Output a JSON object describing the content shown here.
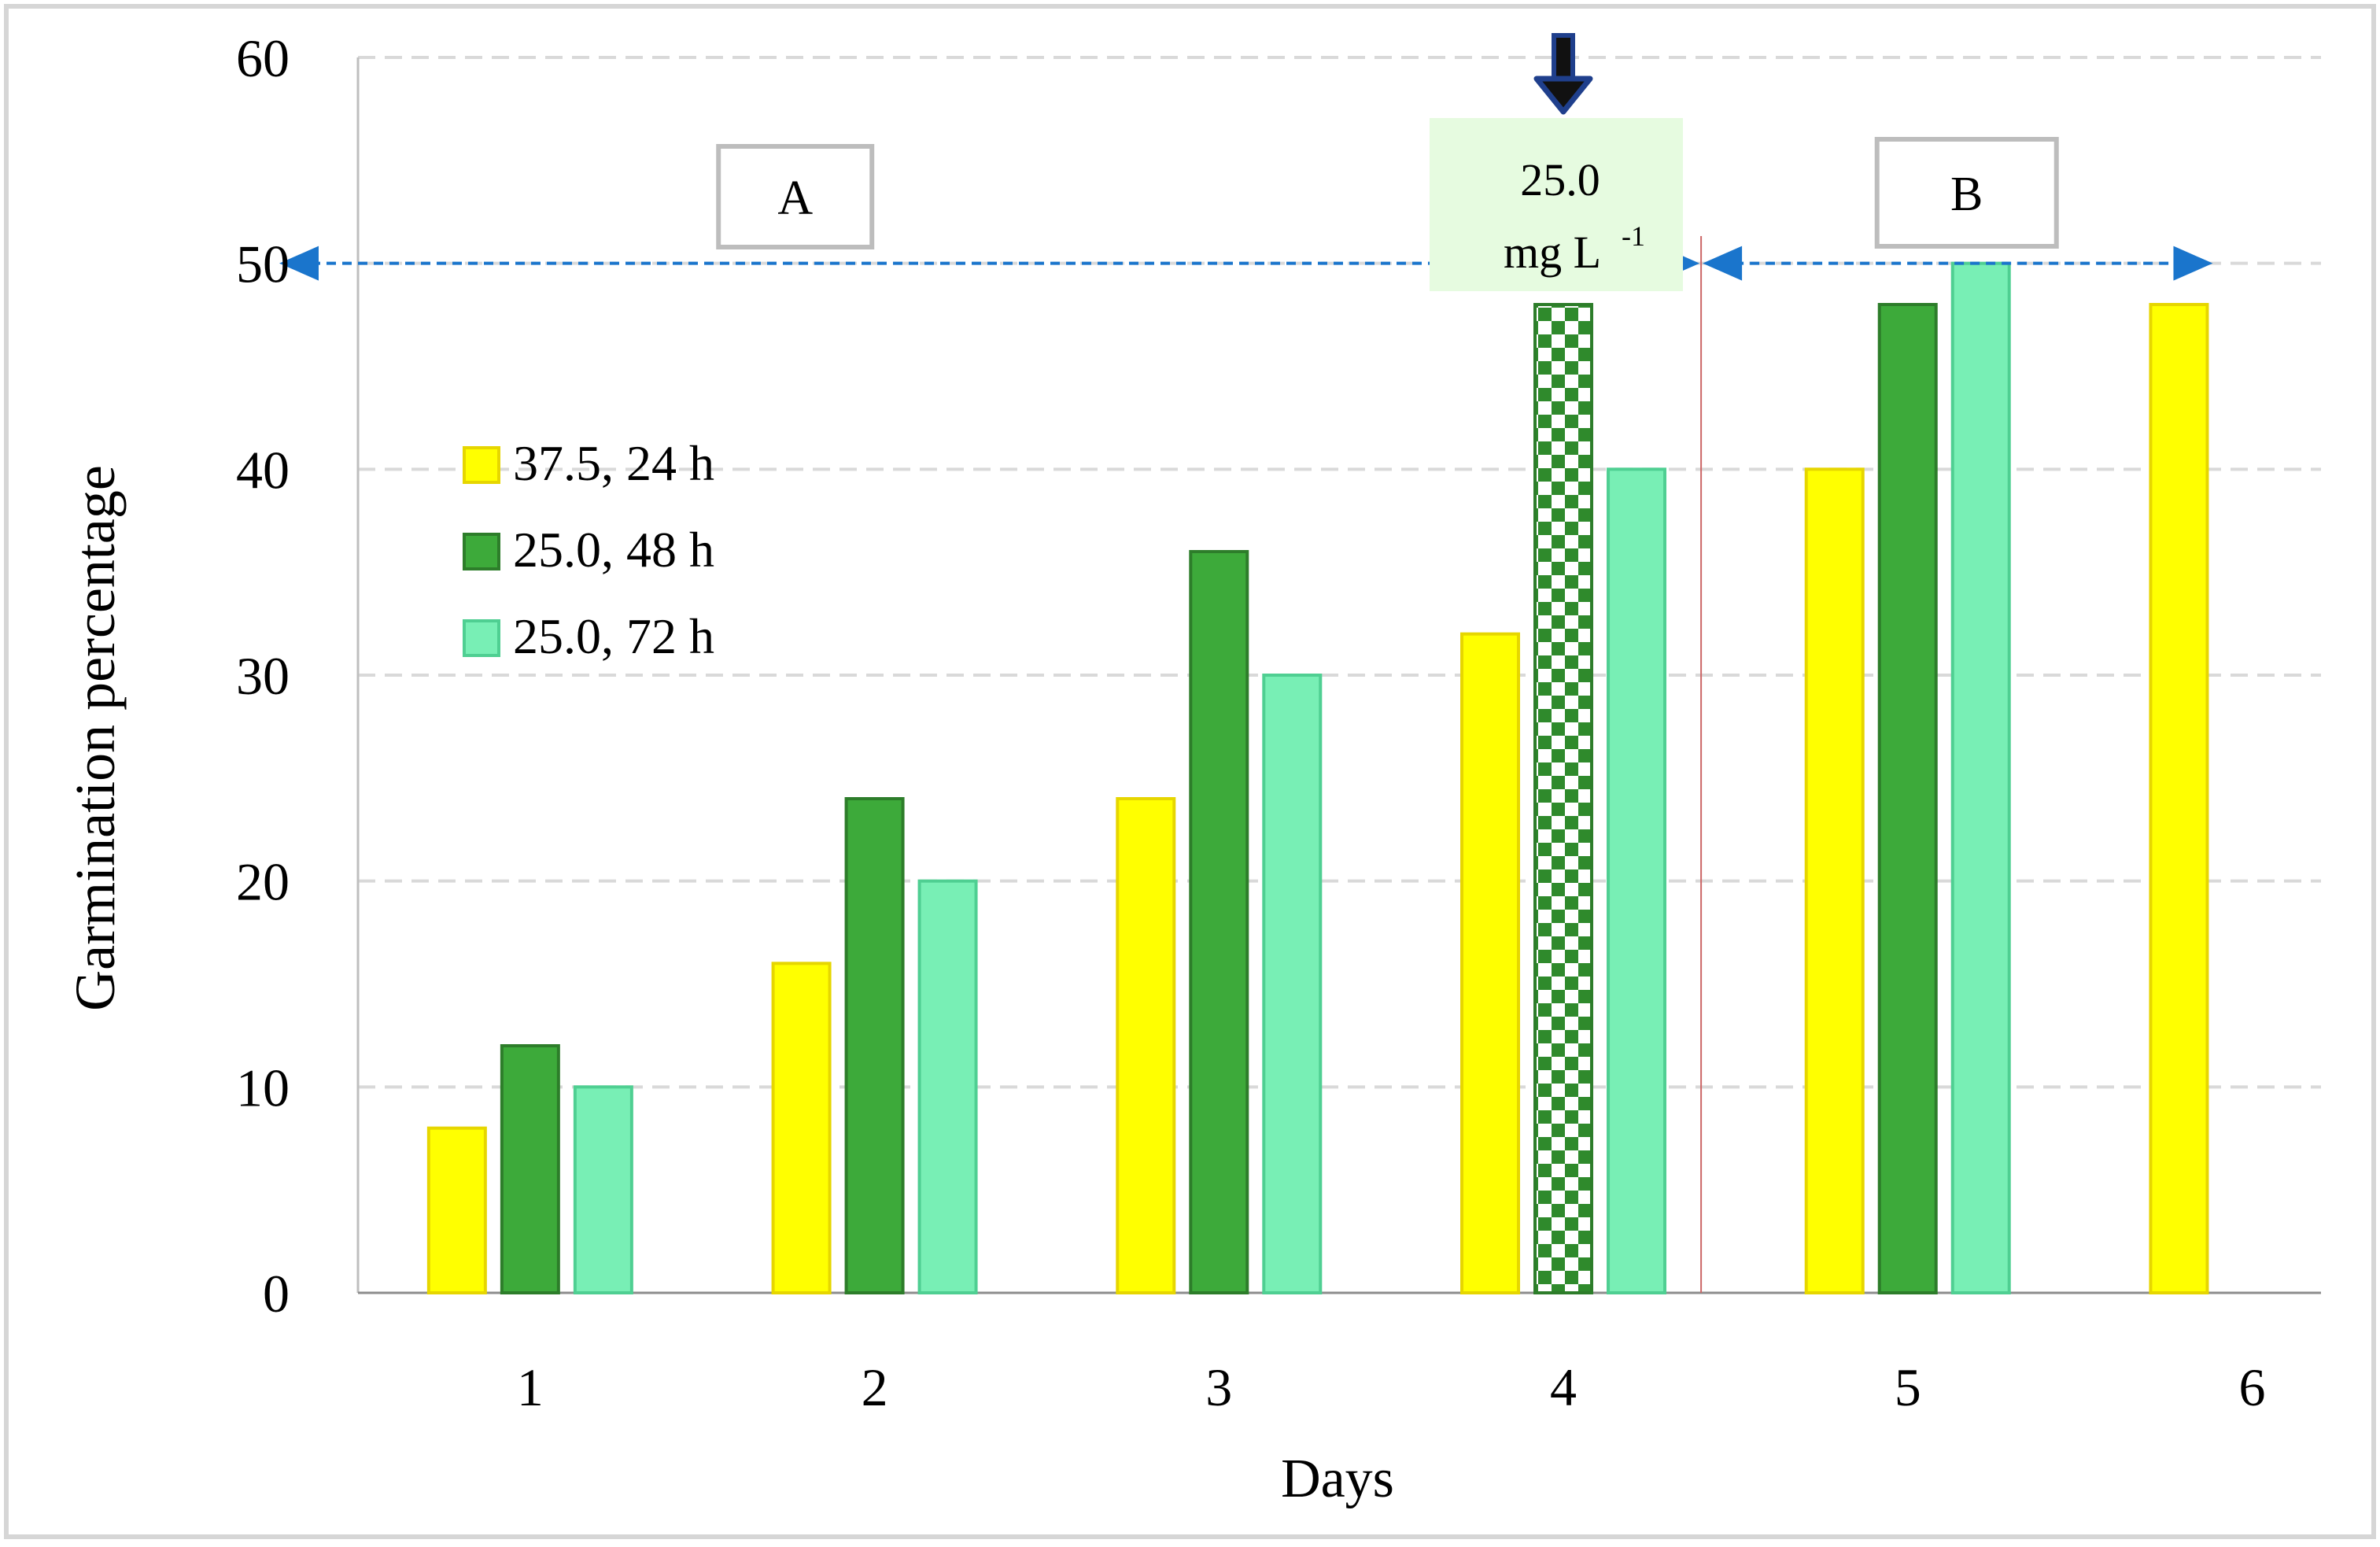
{
  "chart_data": {
    "type": "bar",
    "title": "",
    "xlabel": "Days",
    "ylabel": "Garmination percentage",
    "categories": [
      "1",
      "2",
      "3",
      "4",
      "5",
      "6"
    ],
    "ylim": [
      0,
      60
    ],
    "yticks": [
      "0",
      "10",
      "20",
      "30",
      "40",
      "50",
      "60"
    ],
    "grid": true,
    "legend_position": "left",
    "series": [
      {
        "name": "37.5, 24 h",
        "color": "#ffff00",
        "edge": "#e6d600",
        "values": [
          8,
          16,
          24,
          32,
          40,
          48
        ]
      },
      {
        "name": "25.0, 48 h",
        "color": "#3daa3a",
        "edge": "#2d7d2a",
        "values": [
          12,
          24,
          36,
          48,
          48,
          null
        ],
        "patterned_index": 3
      },
      {
        "name": "25.0, 72 h",
        "color": "#78efb5",
        "edge": "#4fcf92",
        "values": [
          10,
          20,
          30,
          40,
          50,
          null
        ]
      }
    ],
    "annotations": {
      "region_a": {
        "label": "A",
        "from": 0.5,
        "to": 4.4,
        "y": 50
      },
      "region_b": {
        "label": "B",
        "from": 4.4,
        "to": 6.0,
        "y": 50
      },
      "divider_x": 4.4,
      "callout": {
        "line1": "25.0",
        "line2": "mg L",
        "superscript": "-1",
        "day": "4"
      },
      "arrow_color": "#1a75cc",
      "divider_color": "#cc6666",
      "callout_color": "#e6fbe0",
      "down_arrow_color": "#1f3f8c"
    }
  }
}
